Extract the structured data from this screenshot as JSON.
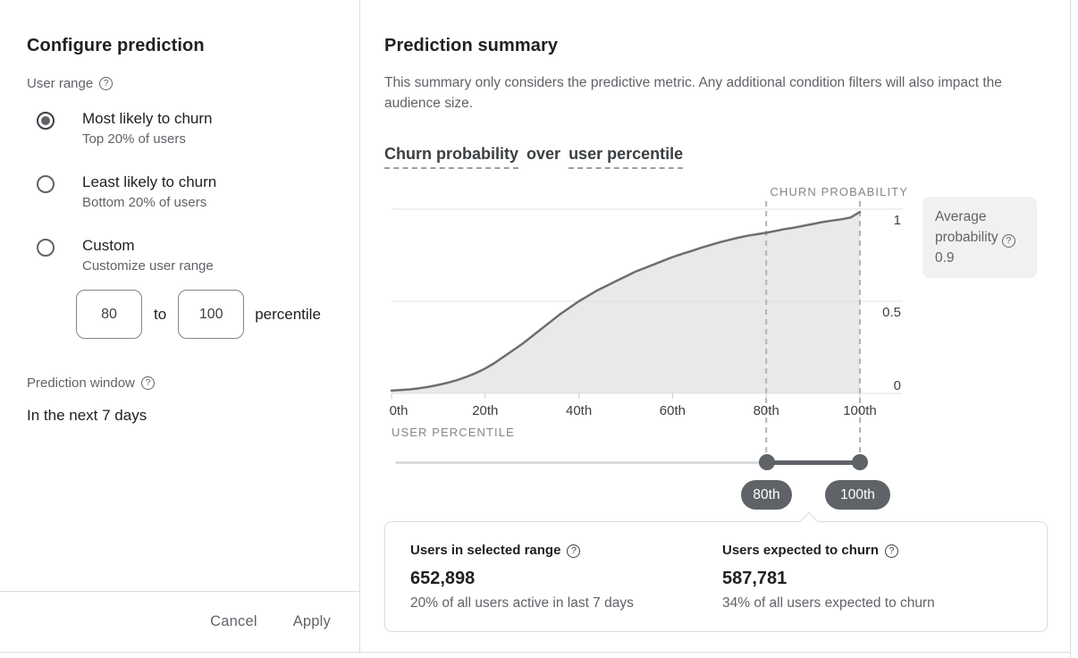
{
  "left_panel": {
    "title": "Configure prediction",
    "user_range_label": "User range",
    "options": [
      {
        "label": "Most likely to churn",
        "description": "Top 20% of users",
        "selected": true
      },
      {
        "label": "Least likely to churn",
        "description": "Bottom 20% of users",
        "selected": false
      },
      {
        "label": "Custom",
        "description": "Customize user range",
        "selected": false
      }
    ],
    "custom_range": {
      "from": "80",
      "to_word": "to",
      "to": "100",
      "unit": "percentile"
    },
    "prediction_window_label": "Prediction window",
    "prediction_window_value": "In the next 7 days",
    "cancel_label": "Cancel",
    "apply_label": "Apply"
  },
  "right_panel": {
    "title": "Prediction summary",
    "description": "This summary only considers the predictive metric. Any additional condition filters will also impact the audience size.",
    "chart_title": {
      "metric": "Churn probability",
      "connector": "over",
      "dimension": "user percentile"
    },
    "average_box": {
      "line1": "Average",
      "line2": "probability",
      "value": "0.9"
    },
    "slider": {
      "low_label": "80th",
      "high_label": "100th"
    },
    "stats": [
      {
        "label": "Users in selected range",
        "value": "652,898",
        "description": "20% of all users active in last 7 days"
      },
      {
        "label": "Users expected to churn",
        "value": "587,781",
        "description": "34% of all users expected to churn"
      }
    ]
  },
  "chart_data": {
    "type": "area",
    "title": "Churn probability over user percentile",
    "xlabel": "USER PERCENTILE",
    "ylabel": "CHURN PROBABILITY",
    "xlim": [
      0,
      100
    ],
    "ylim": [
      0,
      1
    ],
    "x_ticks": [
      {
        "pos": 0,
        "label": "0th"
      },
      {
        "pos": 20,
        "label": "20th"
      },
      {
        "pos": 40,
        "label": "40th"
      },
      {
        "pos": 60,
        "label": "60th"
      },
      {
        "pos": 80,
        "label": "80th"
      },
      {
        "pos": 100,
        "label": "100th"
      }
    ],
    "y_ticks": [
      {
        "pos": 1,
        "label": "1"
      },
      {
        "pos": 0.5,
        "label": "0.5"
      },
      {
        "pos": 0,
        "label": "0"
      }
    ],
    "selected_range": [
      80,
      100
    ],
    "average_probability": 0.9,
    "grid": true,
    "series": [
      {
        "name": "churn probability",
        "x": [
          0,
          2,
          4,
          6,
          8,
          10,
          12,
          14,
          16,
          18,
          20,
          22,
          24,
          26,
          28,
          30,
          32,
          34,
          36,
          38,
          40,
          42,
          44,
          46,
          48,
          50,
          52,
          54,
          56,
          58,
          60,
          62,
          64,
          66,
          68,
          70,
          72,
          74,
          76,
          78,
          80,
          82,
          84,
          86,
          88,
          90,
          92,
          94,
          96,
          98,
          100
        ],
        "y": [
          0.015,
          0.018,
          0.022,
          0.028,
          0.036,
          0.046,
          0.058,
          0.072,
          0.09,
          0.11,
          0.135,
          0.165,
          0.2,
          0.235,
          0.27,
          0.31,
          0.35,
          0.39,
          0.43,
          0.465,
          0.5,
          0.53,
          0.56,
          0.585,
          0.61,
          0.635,
          0.66,
          0.68,
          0.7,
          0.72,
          0.74,
          0.757,
          0.773,
          0.79,
          0.805,
          0.82,
          0.833,
          0.845,
          0.856,
          0.864,
          0.872,
          0.882,
          0.892,
          0.9,
          0.91,
          0.92,
          0.93,
          0.938,
          0.945,
          0.955,
          0.985
        ]
      }
    ],
    "colors": {
      "line": "#6b6f73",
      "area_fill": "#e9e9e9",
      "grid": "#e0e0e0",
      "tick": "#cccccc",
      "dashed_marker": "#b0b4b8",
      "tick_label": "#3c4043"
    }
  }
}
